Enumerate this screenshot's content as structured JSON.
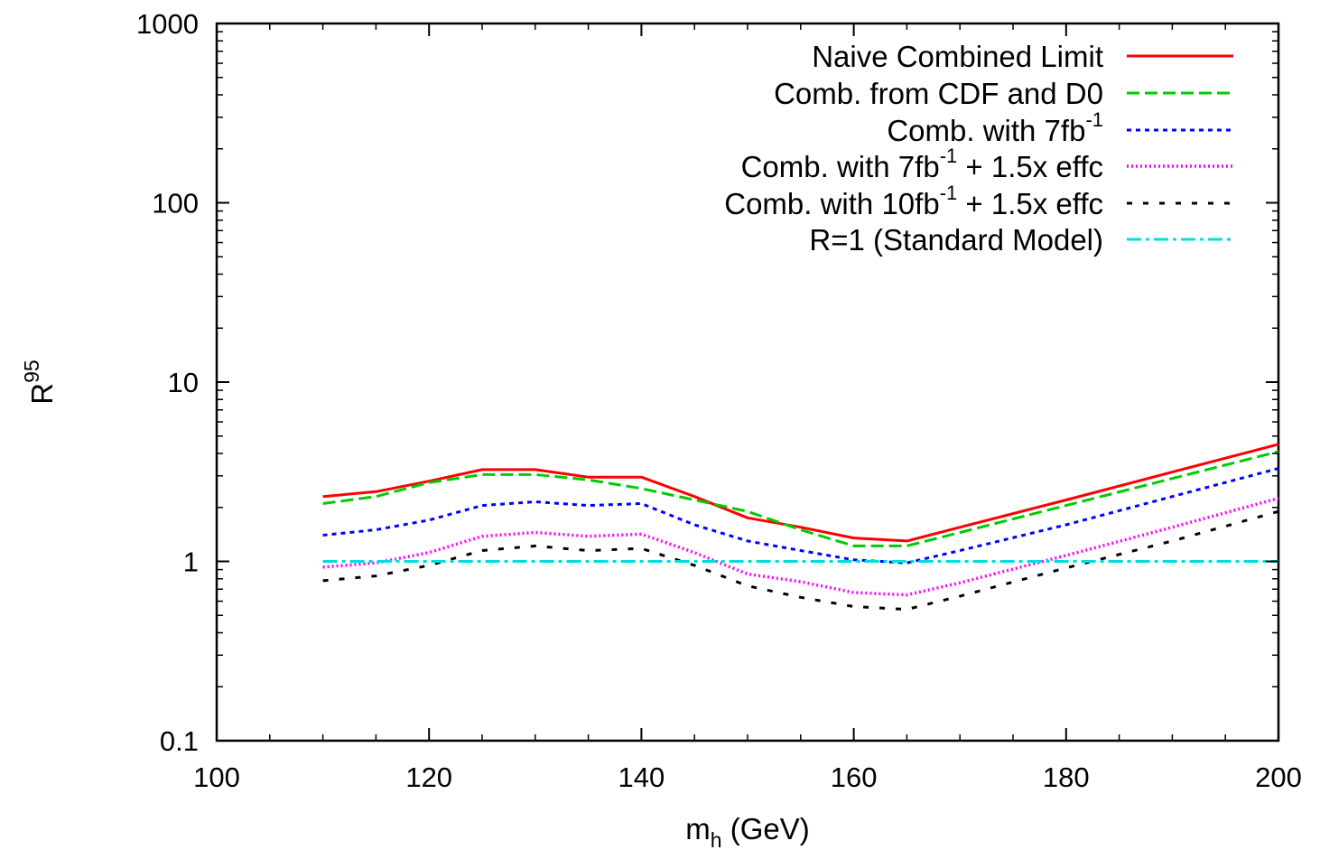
{
  "chart_data": {
    "type": "line",
    "title": "",
    "xlabel": {
      "base": "m",
      "sub": "h",
      "tail": " (GeV)"
    },
    "ylabel": {
      "base": "R",
      "sup": "95"
    },
    "xlim": [
      100,
      200
    ],
    "ylim": [
      0.1,
      1000
    ],
    "yscale": "log",
    "grid": false,
    "legend_position": "top-right",
    "x_ticks": [
      100,
      120,
      140,
      160,
      180,
      200
    ],
    "x_tick_labels": [
      "100",
      "120",
      "140",
      "160",
      "180",
      "200"
    ],
    "y_ticks": [
      0.1,
      1,
      10,
      100,
      1000
    ],
    "y_tick_labels": [
      "0.1",
      "1",
      "10",
      "100",
      "1000"
    ],
    "series": [
      {
        "name": "Naive Combined Limit",
        "label_parts": [
          {
            "t": "Naive Combined Limit"
          }
        ],
        "color": "#ff0000",
        "style": "solid",
        "x": [
          110,
          115,
          120,
          125,
          130,
          135,
          140,
          145,
          150,
          155,
          160,
          165,
          170,
          180,
          190,
          200
        ],
        "y": [
          2.3,
          2.45,
          2.8,
          3.25,
          3.25,
          2.95,
          2.95,
          2.3,
          1.75,
          1.55,
          1.35,
          1.3,
          1.55,
          2.2,
          3.15,
          4.5
        ]
      },
      {
        "name": "Comb. from CDF and D0",
        "label_parts": [
          {
            "t": "Comb. from CDF and D0"
          }
        ],
        "color": "#00cc00",
        "style": "dashed",
        "x": [
          110,
          115,
          120,
          125,
          130,
          135,
          140,
          145,
          150,
          155,
          160,
          165,
          170,
          180,
          190,
          200
        ],
        "y": [
          2.1,
          2.3,
          2.75,
          3.05,
          3.05,
          2.85,
          2.55,
          2.2,
          1.9,
          1.5,
          1.22,
          1.22,
          1.45,
          2.05,
          2.9,
          4.1
        ]
      },
      {
        "name": "Comb. with 7fb-1",
        "label_parts": [
          {
            "t": "Comb. with 7fb"
          },
          {
            "t": "-1",
            "sup": true
          }
        ],
        "color": "#0000ff",
        "style": "dashed-short",
        "x": [
          110,
          115,
          120,
          125,
          130,
          135,
          140,
          145,
          150,
          155,
          160,
          165,
          170,
          180,
          190,
          200
        ],
        "y": [
          1.4,
          1.5,
          1.7,
          2.05,
          2.15,
          2.05,
          2.1,
          1.6,
          1.3,
          1.15,
          1.02,
          0.98,
          1.15,
          1.6,
          2.3,
          3.3
        ]
      },
      {
        "name": "Comb. with 7fb-1 + 1.5x effc",
        "label_parts": [
          {
            "t": "Comb. with 7fb"
          },
          {
            "t": "-1",
            "sup": true
          },
          {
            "t": " + 1.5x effc"
          }
        ],
        "color": "#ff00ff",
        "style": "dotted",
        "x": [
          110,
          115,
          120,
          125,
          130,
          135,
          140,
          145,
          150,
          155,
          160,
          165,
          170,
          180,
          190,
          200
        ],
        "y": [
          0.93,
          0.98,
          1.12,
          1.38,
          1.45,
          1.38,
          1.42,
          1.12,
          0.85,
          0.77,
          0.67,
          0.65,
          0.76,
          1.08,
          1.55,
          2.25
        ]
      },
      {
        "name": "Comb. with 10fb-1 + 1.5x effc",
        "label_parts": [
          {
            "t": "Comb. with 10fb"
          },
          {
            "t": "-1",
            "sup": true
          },
          {
            "t": " + 1.5x effc"
          }
        ],
        "color": "#000000",
        "style": "dashed-sparse",
        "x": [
          110,
          115,
          120,
          125,
          130,
          135,
          140,
          145,
          150,
          155,
          160,
          165,
          170,
          180,
          190,
          200
        ],
        "y": [
          0.78,
          0.83,
          0.95,
          1.15,
          1.22,
          1.15,
          1.18,
          0.95,
          0.73,
          0.63,
          0.56,
          0.54,
          0.64,
          0.92,
          1.3,
          1.9
        ]
      },
      {
        "name": "R=1 (Standard Model)",
        "label_parts": [
          {
            "t": "R=1 (Standard Model)"
          }
        ],
        "color": "#00dddd",
        "style": "dash-dot",
        "x": [
          110,
          200
        ],
        "y": [
          1,
          1
        ]
      }
    ]
  }
}
